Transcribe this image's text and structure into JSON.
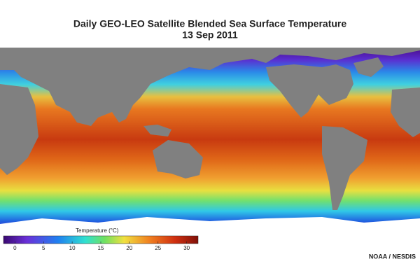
{
  "title": "Daily GEO-LEO Satellite Blended Sea Surface Temperature",
  "subtitle": "13 Sep 2011",
  "colorbar": {
    "label": "Temperature (°C)",
    "range": [
      -2,
      32
    ],
    "ticks": [
      0,
      5,
      10,
      15,
      20,
      25,
      30
    ]
  },
  "credit": "NOAA / NESDIS"
}
